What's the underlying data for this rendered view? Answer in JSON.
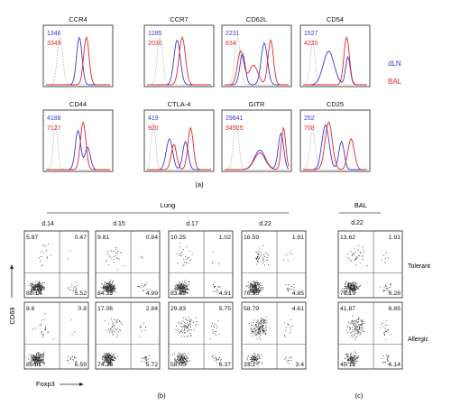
{
  "panel_a": {
    "caption": "(a)",
    "legend": [
      {
        "label": "dLN",
        "color": "#3a3ad6"
      },
      {
        "label": "BAL",
        "color": "#e0262b"
      }
    ],
    "histograms": [
      {
        "marker": "CCR4",
        "dln_value": "1346",
        "bal_value": "3349"
      },
      {
        "marker": "CCR7",
        "dln_value": "1285",
        "bal_value": "2030"
      },
      {
        "marker": "CD62L",
        "dln_value": "2231",
        "bal_value": "634"
      },
      {
        "marker": "CD54",
        "dln_value": "1527",
        "bal_value": "4220"
      },
      {
        "marker": "CD44",
        "dln_value": "4188",
        "bal_value": "7127"
      },
      {
        "marker": "CTLA-4",
        "dln_value": "419",
        "bal_value": "920"
      },
      {
        "marker": "GITR",
        "dln_value": "29841",
        "bal_value": "34505"
      },
      {
        "marker": "CD25",
        "dln_value": "252",
        "bal_value": "708"
      }
    ]
  },
  "panel_b": {
    "caption": "(b)",
    "group_label": "Lung",
    "y_axis_label": "CD69",
    "x_axis_label": "Foxp3",
    "days": [
      "d.14",
      "d.15",
      "d.17",
      "d.22"
    ],
    "rows": [
      {
        "plots": [
          {
            "ul": "5.87",
            "ur": "0.47",
            "ll": "88.14",
            "lr": "5.52"
          },
          {
            "ul": "9.81",
            "ur": "0.84",
            "ll": "84.35",
            "lr": "4.99"
          },
          {
            "ul": "10.25",
            "ur": "1.02",
            "ll": "83.82",
            "lr": "4.91"
          },
          {
            "ul": "16.59",
            "ur": "1.91",
            "ll": "76.55",
            "lr": "4.95"
          }
        ]
      },
      {
        "plots": [
          {
            "ul": "8.6",
            "ur": "0.8",
            "ll": "85.01",
            "lr": "5.59"
          },
          {
            "ul": "17.06",
            "ur": "2.84",
            "ll": "74.38",
            "lr": "5.72"
          },
          {
            "ul": "29.83",
            "ur": "5.75",
            "ll": "58.05",
            "lr": "6.37"
          },
          {
            "ul": "58.79",
            "ur": "4.61",
            "ll": "33.2",
            "lr": "3.4"
          }
        ]
      }
    ]
  },
  "panel_c": {
    "caption": "(c)",
    "group_label": "BAL",
    "day": "d.22",
    "rows": [
      {
        "label": "Tolerant",
        "ul": "13.62",
        "ur": "1.91",
        "ll": "78.19",
        "lr": "6.28"
      },
      {
        "label": "Allergic",
        "ul": "41.87",
        "ur": "6.85",
        "ll": "45.13",
        "lr": "6.14"
      }
    ]
  }
}
